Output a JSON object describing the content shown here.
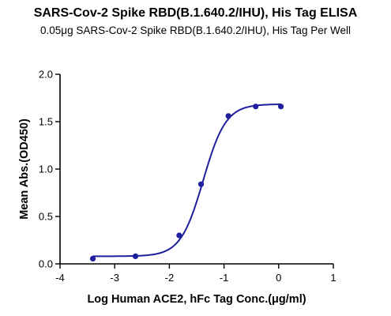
{
  "chart_data": {
    "type": "scatter",
    "title": "SARS-Cov-2 Spike RBD(B.1.640.2/IHU), His Tag ELISA",
    "subtitle": "0.05μg SARS-Cov-2 Spike RBD(B.1.640.2/IHU), His Tag Per Well",
    "xlabel": "Log Human ACE2, hFc Tag Conc.(μg/ml)",
    "ylabel": "Mean Abs.(OD450)",
    "xlim": [
      -4,
      1
    ],
    "ylim": [
      0,
      2.0
    ],
    "x_ticks": [
      -4,
      -3,
      -2,
      -1,
      0,
      1
    ],
    "y_ticks": [
      0.0,
      0.5,
      1.0,
      1.5,
      2.0
    ],
    "x_tick_labels": [
      "-4",
      "-3",
      "-2",
      "-1",
      "0",
      "1"
    ],
    "y_tick_labels": [
      "0.0",
      "0.5",
      "1.0",
      "1.5",
      "2.0"
    ],
    "grid": false,
    "series": [
      {
        "color": "#1f1f9e",
        "x": [
          -3.4,
          -2.62,
          -1.82,
          -1.42,
          -0.92,
          -0.42,
          0.04
        ],
        "y": [
          0.055,
          0.08,
          0.3,
          0.84,
          1.56,
          1.66,
          1.66
        ],
        "fit": {
          "bottom": 0.08,
          "top": 1.685,
          "log_ec50": -1.38,
          "hill": 2.1
        }
      }
    ]
  }
}
